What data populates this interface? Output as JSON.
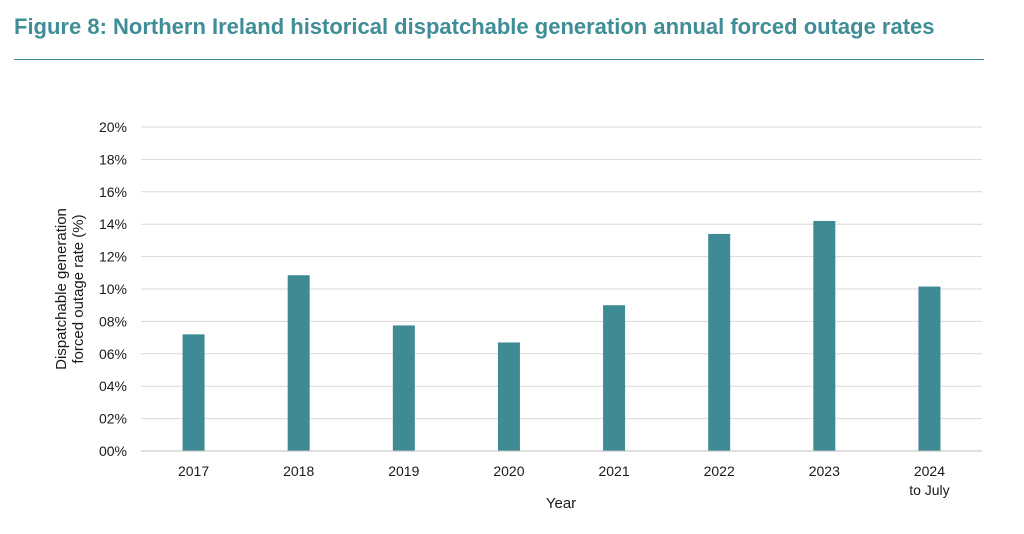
{
  "figure": {
    "title": "Figure 8: Northern Ireland historical dispatchable generation annual forced outage rates"
  },
  "colors": {
    "accent": "#3f8d96",
    "bar": "#3f8b95",
    "grid": "#d9d9d9"
  },
  "chart_data": {
    "type": "bar",
    "title": "Figure 8: Northern Ireland historical dispatchable generation annual forced outage rates",
    "xlabel": "Year",
    "ylabel_lines": [
      "Dispatchable generation",
      "forced outage rate (%)"
    ],
    "categories": [
      [
        "2017"
      ],
      [
        "2018"
      ],
      [
        "2019"
      ],
      [
        "2020"
      ],
      [
        "2021"
      ],
      [
        "2022"
      ],
      [
        "2023"
      ],
      [
        "2024",
        "to July"
      ]
    ],
    "values": [
      7.2,
      10.85,
      7.75,
      6.7,
      9.0,
      13.4,
      14.2,
      10.15
    ],
    "ylim": [
      0,
      20
    ],
    "yticks": [
      "00%",
      "02%",
      "04%",
      "06%",
      "08%",
      "10%",
      "12%",
      "14%",
      "16%",
      "18%",
      "20%"
    ],
    "grid": true,
    "legend": "none"
  }
}
